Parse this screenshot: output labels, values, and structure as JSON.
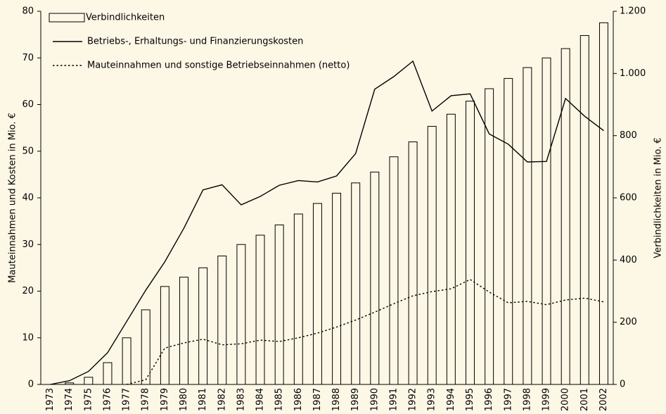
{
  "chart_data": {
    "type": "bar",
    "categories": [
      "1973",
      "1974",
      "1975",
      "1976",
      "1977",
      "1978",
      "1979",
      "1980",
      "1981",
      "1982",
      "1983",
      "1984",
      "1985",
      "1986",
      "1987",
      "1988",
      "1989",
      "1990",
      "1991",
      "1992",
      "1993",
      "1994",
      "1995",
      "1996",
      "1997",
      "1998",
      "1999",
      "2000",
      "2001",
      "2002"
    ],
    "series": [
      {
        "name": "Verbindlichkeiten",
        "type": "bar",
        "axis": "y2",
        "color": "#000000",
        "values": [
          0,
          5,
          23,
          70,
          150,
          240,
          315,
          345,
          375,
          413,
          450,
          480,
          513,
          548,
          582,
          615,
          648,
          683,
          732,
          780,
          830,
          869,
          911,
          951,
          984,
          1019,
          1050,
          1080,
          1122,
          1163
        ]
      },
      {
        "name": "Betriebs-, Erhaltungs- und Finanzierungskosten",
        "type": "line",
        "linestyle": "solid",
        "color": "#000000",
        "values": [
          0,
          0.8,
          2.8,
          6.8,
          13.5,
          20.2,
          26.3,
          33.5,
          41.7,
          42.8,
          38.5,
          40.3,
          42.7,
          43.7,
          43.4,
          44.7,
          49.5,
          63.3,
          66,
          69.3,
          58.6,
          61.9,
          62.3,
          53.7,
          51.5,
          47.7,
          47.8,
          61.3,
          57.5,
          54.4
        ]
      },
      {
        "name": "Mauteinnahmen und sonstige Betriebseinnahmen (netto)",
        "type": "line",
        "linestyle": "dotted",
        "color": "#000000",
        "values": [
          null,
          null,
          null,
          null,
          0,
          1,
          7.8,
          8.9,
          9.7,
          8.5,
          8.7,
          9.5,
          9.2,
          10,
          11,
          12.3,
          13.8,
          15.5,
          17.3,
          19,
          19.9,
          20.5,
          22.5,
          19.8,
          17.5,
          17.8,
          17.1,
          18.1,
          18.5,
          17.7
        ]
      }
    ],
    "ylabel": "Mauteinnahmen und Kosten in Mio. €",
    "y2label": "Verbindlichkeiten in Mio. €",
    "ylim": [
      0,
      80
    ],
    "yticks": [
      0,
      10,
      20,
      30,
      40,
      50,
      60,
      70,
      80
    ],
    "y2lim": [
      0,
      1200
    ],
    "y2ticks": [
      0,
      200,
      400,
      600,
      800,
      {
        "value": 1000,
        "label": "1.000"
      },
      {
        "value": 1200,
        "label": "1.200"
      }
    ],
    "legend": "upper left",
    "grid": false
  }
}
